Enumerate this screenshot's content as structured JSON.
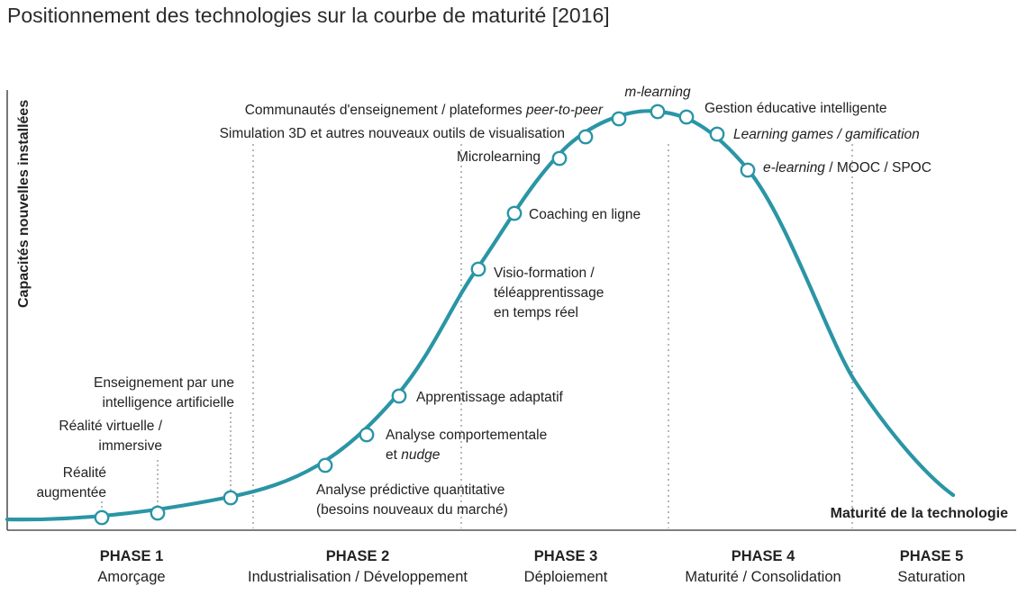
{
  "title": "Positionnement des technologies sur la courbe de maturité [2016]",
  "axes": {
    "y_label": "Capacités nouvelles installées",
    "x_label": "Maturité de la technologie"
  },
  "colors": {
    "curve": "#2a95a5",
    "axis": "#555555",
    "divider": "#9a9a9a"
  },
  "phases": [
    {
      "name": "PHASE 1",
      "subtitle": "Amorçage"
    },
    {
      "name": "PHASE 2",
      "subtitle": "Industrialisation / Développement"
    },
    {
      "name": "PHASE 3",
      "subtitle": "Déploiement"
    },
    {
      "name": "PHASE 4",
      "subtitle": "Maturité / Consolidation"
    },
    {
      "name": "PHASE 5",
      "subtitle": "Saturation"
    }
  ],
  "technologies": [
    {
      "lines": [
        [
          {
            "t": "Réalité"
          }
        ],
        [
          {
            "t": "augmentée"
          }
        ]
      ]
    },
    {
      "lines": [
        [
          {
            "t": "Réalité virtuelle /"
          }
        ],
        [
          {
            "t": "immersive"
          }
        ]
      ]
    },
    {
      "lines": [
        [
          {
            "t": "Enseignement par une"
          }
        ],
        [
          {
            "t": "intelligence artificielle"
          }
        ]
      ]
    },
    {
      "lines": [
        [
          {
            "t": "Analyse prédictive quantitative"
          }
        ],
        [
          {
            "t": "(besoins nouveaux du marché)"
          }
        ]
      ]
    },
    {
      "lines": [
        [
          {
            "t": "Analyse comportementale"
          }
        ],
        [
          {
            "t": "et "
          },
          {
            "t": "nudge",
            "i": true
          }
        ]
      ]
    },
    {
      "lines": [
        [
          {
            "t": "Apprentissage adaptatif"
          }
        ]
      ]
    },
    {
      "lines": [
        [
          {
            "t": "Visio-formation /"
          }
        ],
        [
          {
            "t": "téléapprentissage"
          }
        ],
        [
          {
            "t": "en temps réel"
          }
        ]
      ]
    },
    {
      "lines": [
        [
          {
            "t": "Coaching en ligne"
          }
        ]
      ]
    },
    {
      "lines": [
        [
          {
            "t": "Microlearning"
          }
        ]
      ]
    },
    {
      "lines": [
        [
          {
            "t": "Simulation 3D et autres nouveaux outils de visualisation"
          }
        ]
      ]
    },
    {
      "lines": [
        [
          {
            "t": "Communautés d'enseignement / plateformes "
          },
          {
            "t": "peer-to-peer",
            "i": true
          }
        ]
      ]
    },
    {
      "lines": [
        [
          {
            "t": "m-learning",
            "i": true
          }
        ]
      ]
    },
    {
      "lines": [
        [
          {
            "t": "Gestion éducative intelligente"
          }
        ]
      ]
    },
    {
      "lines": [
        [
          {
            "t": "Learning games / gamification",
            "i": true
          }
        ]
      ]
    },
    {
      "lines": [
        [
          {
            "t": "e-learning",
            "i": true
          },
          {
            "t": " / MOOC / SPOC"
          }
        ]
      ]
    }
  ]
}
